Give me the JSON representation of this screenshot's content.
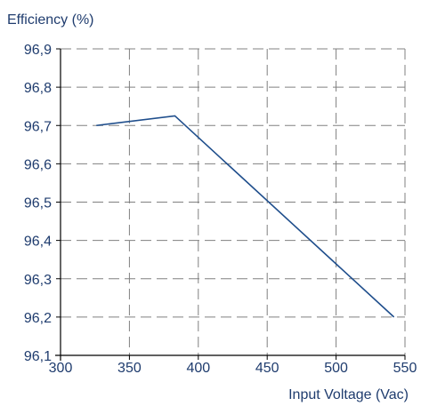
{
  "chart_data": {
    "type": "line",
    "title": "",
    "ylabel": "Efficiency (%)",
    "xlabel": "Input Voltage (Vac)",
    "xlim": [
      300,
      550
    ],
    "ylim": [
      96.1,
      96.9
    ],
    "x_ticks": [
      "300",
      "350",
      "400",
      "450",
      "500",
      "550"
    ],
    "y_ticks": [
      "96,1",
      "96,2",
      "96,3",
      "96,4",
      "96,5",
      "96,6",
      "96,7",
      "96,8",
      "96,9"
    ],
    "grid": true,
    "series": [
      {
        "color": "#1f4e8c",
        "x": [
          326,
          383,
          542
        ],
        "y": [
          96.7,
          96.725,
          96.2
        ]
      }
    ]
  },
  "colors": {
    "axis_text": "#1f3c6e",
    "axis_line": "#000000",
    "grid_line": "#808080"
  }
}
